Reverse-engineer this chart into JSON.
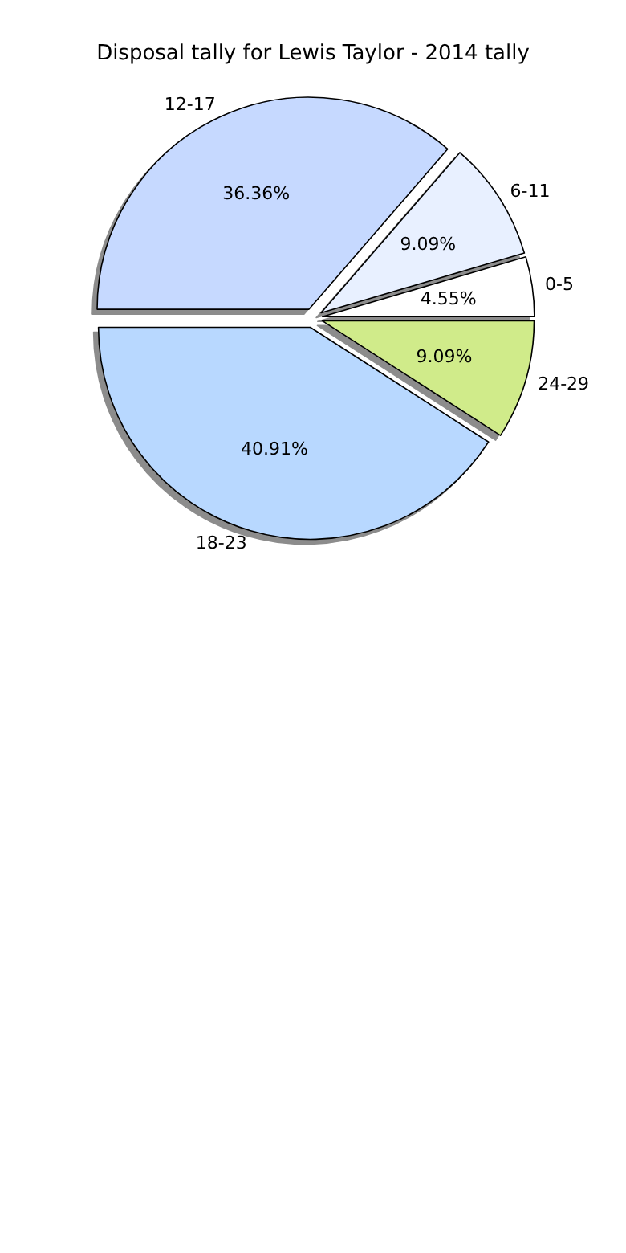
{
  "chart_data": {
    "type": "pie",
    "title": "Disposal tally for Lewis Taylor - 2014 tally",
    "categories": [
      "0-5",
      "6-11",
      "12-17",
      "18-23",
      "24-29"
    ],
    "values": [
      4.55,
      9.09,
      36.36,
      40.91,
      9.09
    ],
    "value_labels": [
      "4.55%",
      "9.09%",
      "36.36%",
      "40.91%",
      "9.09%"
    ],
    "colors": [
      "#ffffff",
      "#e8f0ff",
      "#c6d9ff",
      "#b8d8ff",
      "#d0eb8a"
    ],
    "legend": false
  }
}
